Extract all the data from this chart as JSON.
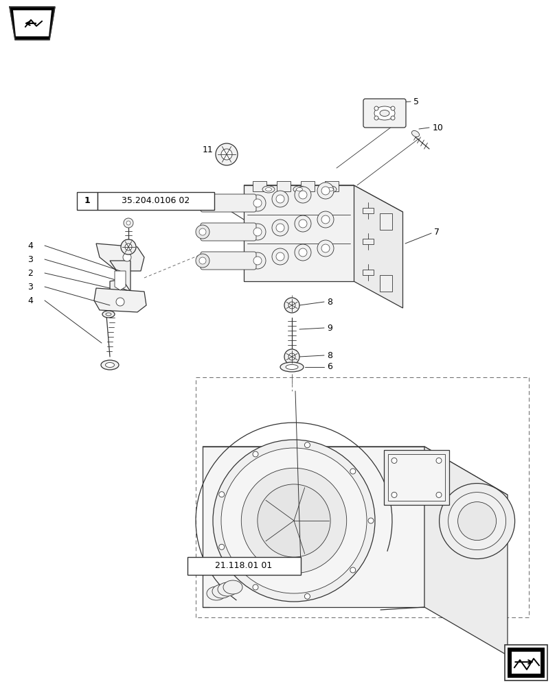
{
  "bg_color": "#ffffff",
  "lc": "#333333",
  "fig_width": 8.12,
  "fig_height": 10.0,
  "dpi": 100,
  "lw_main": 0.9,
  "lw_thin": 0.6,
  "lw_dash": 0.6
}
